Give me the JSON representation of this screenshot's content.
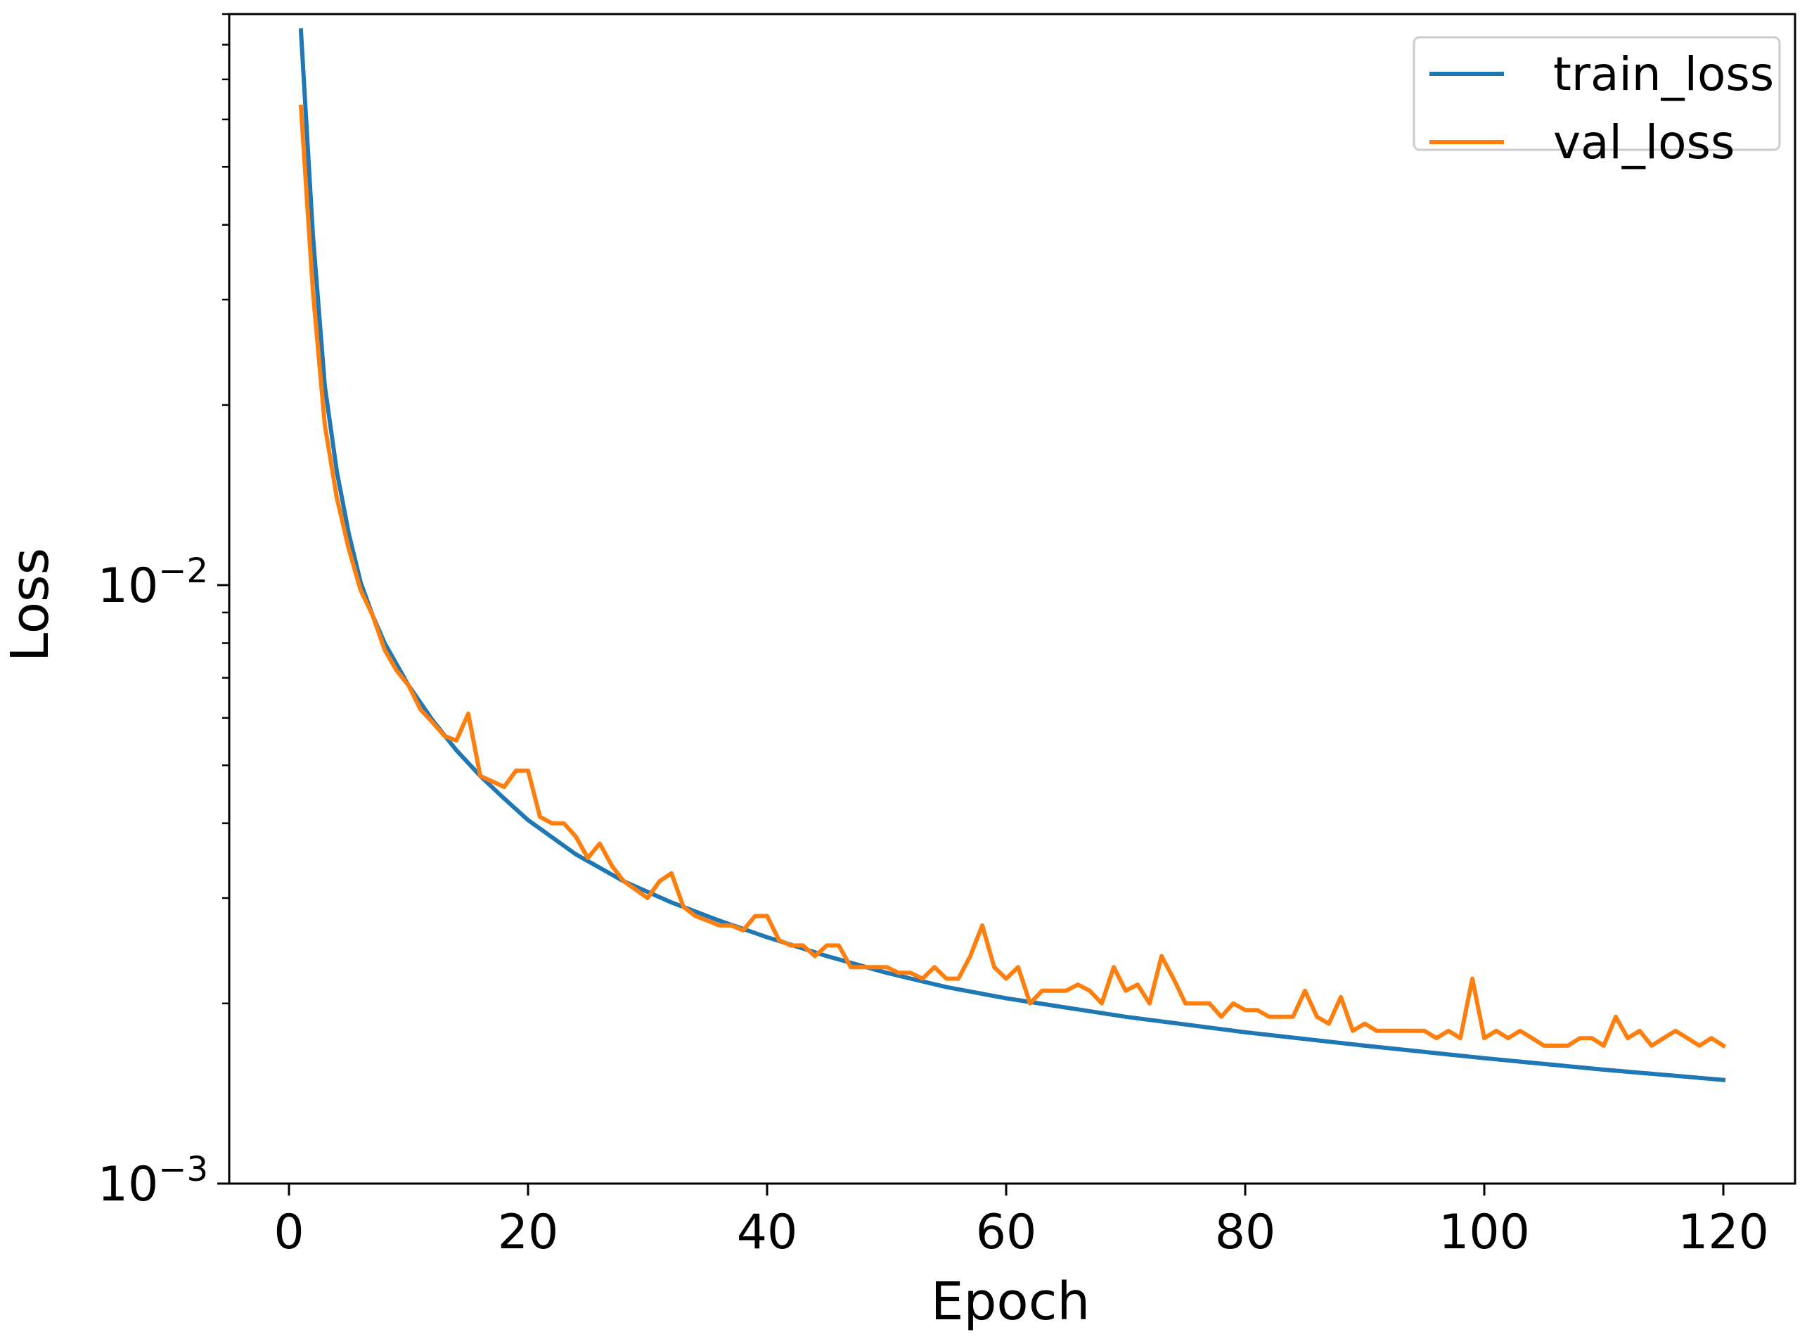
{
  "chart_data": {
    "type": "line",
    "xlabel": "Epoch",
    "ylabel": "Loss",
    "yscale": "log",
    "xlim": [
      -5,
      126
    ],
    "ylim": [
      0.001,
      0.09
    ],
    "xticks": [
      0,
      20,
      40,
      60,
      80,
      100,
      120
    ],
    "ymajor_ticks": [
      {
        "value": 0.001,
        "base": "10",
        "exp": "−3"
      },
      {
        "value": 0.01,
        "base": "10",
        "exp": "−2"
      }
    ],
    "yminor_ticks": [
      0.002,
      0.003,
      0.004,
      0.005,
      0.006,
      0.007,
      0.008,
      0.009,
      0.02,
      0.03,
      0.04,
      0.05,
      0.06,
      0.07,
      0.08,
      0.09
    ],
    "grid": false,
    "legend_position": "top-right",
    "series": [
      {
        "name": "train_loss",
        "color": "#1f77b4",
        "x": [
          1,
          2,
          3,
          4,
          5,
          6,
          7,
          8,
          10,
          12,
          14,
          16,
          18,
          20,
          24,
          28,
          32,
          36,
          40,
          45,
          50,
          55,
          60,
          70,
          80,
          90,
          100,
          110,
          120
        ],
        "values": [
          0.0845,
          0.0385,
          0.0215,
          0.0155,
          0.0122,
          0.0101,
          0.0089,
          0.008,
          0.0068,
          0.00595,
          0.0053,
          0.0048,
          0.0044,
          0.00405,
          0.00355,
          0.0032,
          0.00295,
          0.00275,
          0.00258,
          0.0024,
          0.00225,
          0.00213,
          0.00204,
          0.0019,
          0.00179,
          0.0017,
          0.00162,
          0.00155,
          0.00149
        ]
      },
      {
        "name": "val_loss",
        "color": "#ff7f0e",
        "x": [
          1,
          2,
          3,
          4,
          5,
          6,
          7,
          8,
          9,
          10,
          11,
          12,
          13,
          14,
          15,
          16,
          17,
          18,
          19,
          20,
          21,
          22,
          23,
          24,
          25,
          26,
          27,
          28,
          29,
          30,
          31,
          32,
          33,
          34,
          35,
          36,
          37,
          38,
          39,
          40,
          41,
          42,
          43,
          44,
          45,
          46,
          47,
          48,
          49,
          50,
          51,
          52,
          53,
          54,
          55,
          56,
          57,
          58,
          59,
          60,
          61,
          62,
          63,
          64,
          65,
          66,
          67,
          68,
          69,
          70,
          71,
          72,
          73,
          74,
          75,
          76,
          77,
          78,
          79,
          80,
          81,
          82,
          83,
          84,
          85,
          86,
          87,
          88,
          89,
          90,
          91,
          92,
          93,
          94,
          95,
          96,
          97,
          98,
          99,
          100,
          101,
          102,
          103,
          104,
          105,
          106,
          107,
          108,
          109,
          110,
          111,
          112,
          113,
          114,
          115,
          116,
          117,
          118,
          119,
          120
        ],
        "values": [
          0.063,
          0.031,
          0.0185,
          0.014,
          0.0115,
          0.0098,
          0.0089,
          0.0078,
          0.0072,
          0.0068,
          0.0062,
          0.0059,
          0.0056,
          0.0055,
          0.0061,
          0.0048,
          0.0047,
          0.0046,
          0.0049,
          0.0049,
          0.0041,
          0.004,
          0.004,
          0.0038,
          0.0035,
          0.0037,
          0.0034,
          0.0032,
          0.0031,
          0.003,
          0.0032,
          0.0033,
          0.0029,
          0.0028,
          0.00275,
          0.0027,
          0.0027,
          0.00265,
          0.0028,
          0.0028,
          0.00255,
          0.0025,
          0.0025,
          0.0024,
          0.0025,
          0.0025,
          0.0023,
          0.0023,
          0.0023,
          0.0023,
          0.00225,
          0.00225,
          0.0022,
          0.0023,
          0.0022,
          0.0022,
          0.0024,
          0.0027,
          0.0023,
          0.0022,
          0.0023,
          0.002,
          0.0021,
          0.0021,
          0.0021,
          0.00215,
          0.0021,
          0.002,
          0.0023,
          0.0021,
          0.00215,
          0.002,
          0.0024,
          0.0022,
          0.002,
          0.002,
          0.002,
          0.0019,
          0.002,
          0.00195,
          0.00195,
          0.0019,
          0.0019,
          0.0019,
          0.0021,
          0.0019,
          0.00185,
          0.00205,
          0.0018,
          0.00185,
          0.0018,
          0.0018,
          0.0018,
          0.0018,
          0.0018,
          0.00175,
          0.0018,
          0.00175,
          0.0022,
          0.00175,
          0.0018,
          0.00175,
          0.0018,
          0.00175,
          0.0017,
          0.0017,
          0.0017,
          0.00175,
          0.00175,
          0.0017,
          0.0019,
          0.00175,
          0.0018,
          0.0017,
          0.00175,
          0.0018,
          0.00175,
          0.0017,
          0.00175,
          0.0017
        ]
      }
    ]
  }
}
